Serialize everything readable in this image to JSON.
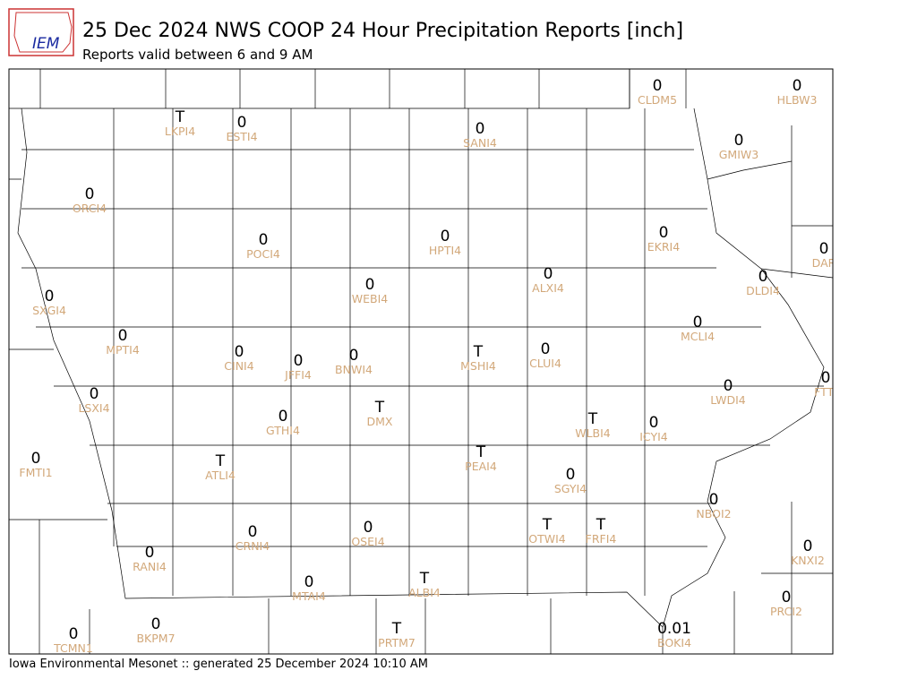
{
  "header": {
    "logo": "IEM",
    "title": "25 Dec 2024 NWS COOP 24 Hour Precipitation Reports [inch]",
    "subtitle": "Reports valid between 6 and 9 AM"
  },
  "stations": [
    {
      "value": "T",
      "id": "LKPI4"
    },
    {
      "value": "0",
      "id": "ESTI4"
    },
    {
      "value": "0",
      "id": "SANI4"
    },
    {
      "value": "0",
      "id": "CLDM5"
    },
    {
      "value": "0",
      "id": "HLBW3"
    },
    {
      "value": "0",
      "id": "GMIW3"
    },
    {
      "value": "0",
      "id": "ORCI4"
    },
    {
      "value": "0",
      "id": "POCI4"
    },
    {
      "value": "0",
      "id": "HPTI4"
    },
    {
      "value": "0",
      "id": "EKRI4"
    },
    {
      "value": "0",
      "id": "DAR"
    },
    {
      "value": "0",
      "id": "ALXI4"
    },
    {
      "value": "0",
      "id": "DLDI4"
    },
    {
      "value": "0",
      "id": "WEBI4"
    },
    {
      "value": "0",
      "id": "SXGI4"
    },
    {
      "value": "0",
      "id": "MPTI4"
    },
    {
      "value": "0",
      "id": "MCLI4"
    },
    {
      "value": "0",
      "id": "CINI4"
    },
    {
      "value": "0",
      "id": "JFFI4"
    },
    {
      "value": "0",
      "id": "BNWI4"
    },
    {
      "value": "T",
      "id": "MSHI4"
    },
    {
      "value": "0",
      "id": "CLUI4"
    },
    {
      "value": "0",
      "id": "FTTI"
    },
    {
      "value": "0",
      "id": "LWDI4"
    },
    {
      "value": "0",
      "id": "LSXI4"
    },
    {
      "value": "0",
      "id": "GTHI4"
    },
    {
      "value": "T",
      "id": "DMX"
    },
    {
      "value": "T",
      "id": "WLBI4"
    },
    {
      "value": "0",
      "id": "ICYI4"
    },
    {
      "value": "0",
      "id": "FMTI1"
    },
    {
      "value": "T",
      "id": "ATLI4"
    },
    {
      "value": "T",
      "id": "PEAI4"
    },
    {
      "value": "0",
      "id": "SGYI4"
    },
    {
      "value": "0",
      "id": "NBOI2"
    },
    {
      "value": "0",
      "id": "CRNI4"
    },
    {
      "value": "0",
      "id": "OSEI4"
    },
    {
      "value": "T",
      "id": "OTWI4"
    },
    {
      "value": "T",
      "id": "FRFI4"
    },
    {
      "value": "0",
      "id": "KNXI2"
    },
    {
      "value": "0",
      "id": "RANI4"
    },
    {
      "value": "0",
      "id": "MTAI4"
    },
    {
      "value": "T",
      "id": "ALBI4"
    },
    {
      "value": "0",
      "id": "PRCI2"
    },
    {
      "value": "0",
      "id": "BKPM7"
    },
    {
      "value": "0",
      "id": "TCMN1"
    },
    {
      "value": "T",
      "id": "PRTM7"
    },
    {
      "value": "0.01",
      "id": "BOKI4"
    }
  ],
  "footer": "Iowa Environmental Mesonet :: generated 25 December 2024 10:10 AM"
}
